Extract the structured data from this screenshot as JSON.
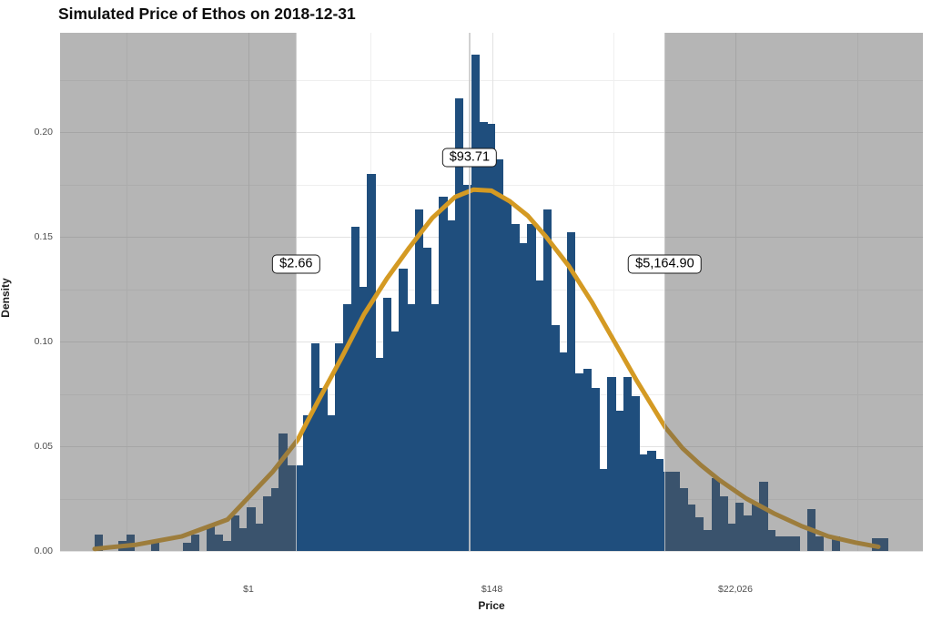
{
  "title": "Simulated Price of Ethos on 2018-12-31",
  "colors": {
    "bar": "#1f4e7d",
    "curve": "#d49a23",
    "shade_color": "#5a5a5a",
    "shade_alpha": 0.45,
    "grid_major": "#e2e2e2",
    "grid_minor": "#efefef",
    "tick_text": "#4d4d4d",
    "vline": "#c9c9c9",
    "annotation_border": "#1a1a1a",
    "background": "#ffffff"
  },
  "chart_data": {
    "type": "histogram_with_density_curve",
    "title": "Simulated Price of Ethos on 2018-12-31",
    "xlabel": "Price",
    "ylabel": "Density",
    "x_scale": "natural_log_of_dollar_price",
    "xlim_ln": [
      -3.87,
      13.85
    ],
    "ylim": [
      0,
      0.2474
    ],
    "grid": true,
    "legend": false,
    "x_ticks": [
      {
        "ln": 0,
        "label": "$1"
      },
      {
        "ln": 5,
        "label": "$148"
      },
      {
        "ln": 10,
        "label": "$22,026"
      }
    ],
    "x_minor_ln": [
      -2.5,
      2.5,
      7.5,
      12.5
    ],
    "y_ticks": [
      {
        "v": 0.0,
        "label": "0.00"
      },
      {
        "v": 0.05,
        "label": "0.05"
      },
      {
        "v": 0.1,
        "label": "0.10"
      },
      {
        "v": 0.15,
        "label": "0.15"
      },
      {
        "v": 0.2,
        "label": "0.20"
      }
    ],
    "y_minor": [
      0.025,
      0.075,
      0.125,
      0.175,
      0.225
    ],
    "bin_ln_width": 0.1645,
    "bars_ln_density": [
      [
        -3.077,
        0.008
      ],
      [
        -2.583,
        0.005
      ],
      [
        -2.419,
        0.008
      ],
      [
        -1.925,
        0.004
      ],
      [
        -1.267,
        0.004
      ],
      [
        -1.103,
        0.008
      ],
      [
        -0.774,
        0.012
      ],
      [
        -0.609,
        0.008
      ],
      [
        -0.445,
        0.005
      ],
      [
        -0.28,
        0.017
      ],
      [
        -0.116,
        0.011
      ],
      [
        0.049,
        0.021
      ],
      [
        0.213,
        0.013
      ],
      [
        0.378,
        0.026
      ],
      [
        0.542,
        0.03
      ],
      [
        0.707,
        0.056
      ],
      [
        0.871,
        0.041
      ],
      [
        1.036,
        0.041
      ],
      [
        1.2,
        0.065
      ],
      [
        1.364,
        0.099
      ],
      [
        1.529,
        0.078
      ],
      [
        1.693,
        0.065
      ],
      [
        1.858,
        0.099
      ],
      [
        2.022,
        0.118
      ],
      [
        2.187,
        0.155
      ],
      [
        2.351,
        0.126
      ],
      [
        2.516,
        0.18
      ],
      [
        2.68,
        0.092
      ],
      [
        2.845,
        0.121
      ],
      [
        3.009,
        0.105
      ],
      [
        3.174,
        0.135
      ],
      [
        3.338,
        0.118
      ],
      [
        3.503,
        0.163
      ],
      [
        3.667,
        0.145
      ],
      [
        3.832,
        0.118
      ],
      [
        3.996,
        0.169
      ],
      [
        4.161,
        0.158
      ],
      [
        4.325,
        0.216
      ],
      [
        4.49,
        0.175
      ],
      [
        4.654,
        0.237
      ],
      [
        4.819,
        0.205
      ],
      [
        4.983,
        0.204
      ],
      [
        5.148,
        0.187
      ],
      [
        5.312,
        0.168
      ],
      [
        5.477,
        0.156
      ],
      [
        5.641,
        0.147
      ],
      [
        5.806,
        0.156
      ],
      [
        5.97,
        0.129
      ],
      [
        6.135,
        0.163
      ],
      [
        6.299,
        0.108
      ],
      [
        6.464,
        0.095
      ],
      [
        6.628,
        0.152
      ],
      [
        6.793,
        0.085
      ],
      [
        6.957,
        0.087
      ],
      [
        7.122,
        0.078
      ],
      [
        7.286,
        0.039
      ],
      [
        7.451,
        0.083
      ],
      [
        7.615,
        0.067
      ],
      [
        7.78,
        0.083
      ],
      [
        7.944,
        0.074
      ],
      [
        8.109,
        0.046
      ],
      [
        8.273,
        0.048
      ],
      [
        8.437,
        0.044
      ],
      [
        8.602,
        0.038
      ],
      [
        8.766,
        0.038
      ],
      [
        8.931,
        0.03
      ],
      [
        9.095,
        0.022
      ],
      [
        9.26,
        0.016
      ],
      [
        9.424,
        0.01
      ],
      [
        9.589,
        0.035
      ],
      [
        9.753,
        0.026
      ],
      [
        9.918,
        0.013
      ],
      [
        10.082,
        0.023
      ],
      [
        10.247,
        0.017
      ],
      [
        10.411,
        0.023
      ],
      [
        10.575,
        0.033
      ],
      [
        10.74,
        0.01
      ],
      [
        10.904,
        0.007
      ],
      [
        11.069,
        0.007
      ],
      [
        11.233,
        0.007
      ],
      [
        11.562,
        0.02
      ],
      [
        11.727,
        0.007
      ],
      [
        12.056,
        0.007
      ],
      [
        12.879,
        0.006
      ],
      [
        13.043,
        0.006
      ]
    ],
    "curve_ln_density": [
      [
        -3.159,
        0.001
      ],
      [
        -2.299,
        0.003
      ],
      [
        -1.364,
        0.007
      ],
      [
        -0.43,
        0.015
      ],
      [
        0.505,
        0.038
      ],
      [
        1.009,
        0.053
      ],
      [
        1.439,
        0.072
      ],
      [
        1.907,
        0.092
      ],
      [
        2.374,
        0.113
      ],
      [
        2.841,
        0.13
      ],
      [
        3.308,
        0.145
      ],
      [
        3.776,
        0.159
      ],
      [
        4.243,
        0.169
      ],
      [
        4.617,
        0.1725
      ],
      [
        4.991,
        0.172
      ],
      [
        5.364,
        0.167
      ],
      [
        5.738,
        0.16
      ],
      [
        6.112,
        0.15
      ],
      [
        6.579,
        0.136
      ],
      [
        7.047,
        0.119
      ],
      [
        7.514,
        0.1
      ],
      [
        7.981,
        0.081
      ],
      [
        8.561,
        0.059
      ],
      [
        8.916,
        0.049
      ],
      [
        9.29,
        0.041
      ],
      [
        9.664,
        0.034
      ],
      [
        10.224,
        0.025
      ],
      [
        10.785,
        0.018
      ],
      [
        11.346,
        0.012
      ],
      [
        11.907,
        0.007
      ],
      [
        12.467,
        0.004
      ],
      [
        12.935,
        0.002
      ]
    ],
    "shaded_ln_ranges": [
      [
        -3.87,
        0.978
      ],
      [
        8.55,
        13.85
      ]
    ],
    "marker_lines_ln": [
      0.978,
      4.54,
      8.55
    ],
    "annotations": [
      {
        "label": "$2.66",
        "price": 2.66,
        "ln": 0.978,
        "y_density": 0.137,
        "role": "lower-bound"
      },
      {
        "label": "$93.71",
        "price": 93.71,
        "ln": 4.54,
        "y_density": 0.188,
        "role": "center-estimate"
      },
      {
        "label": "$5,164.90",
        "price": 5164.9,
        "ln": 8.55,
        "y_density": 0.137,
        "role": "upper-bound"
      }
    ]
  }
}
